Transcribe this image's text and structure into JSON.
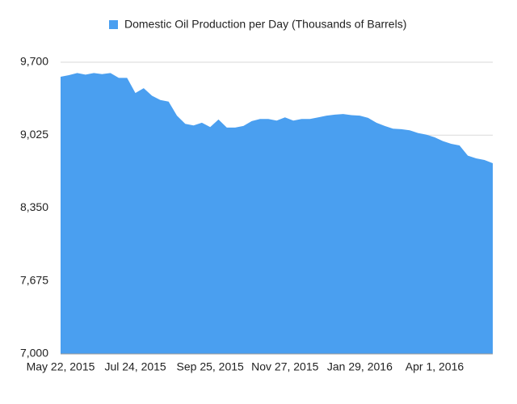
{
  "chart_data": {
    "type": "area",
    "categories": [
      "May 22, 2015",
      null,
      null,
      null,
      null,
      null,
      null,
      null,
      null,
      "Jul 24, 2015",
      null,
      null,
      null,
      null,
      null,
      null,
      null,
      null,
      "Sep 25, 2015",
      null,
      null,
      null,
      null,
      null,
      null,
      null,
      null,
      "Nov 27, 2015",
      null,
      null,
      null,
      null,
      null,
      null,
      null,
      null,
      "Jan 29, 2016",
      null,
      null,
      null,
      null,
      null,
      null,
      null,
      null,
      "Apr 1, 2016",
      null,
      null,
      null,
      null,
      null,
      null,
      null
    ],
    "series": [
      {
        "name": "Domestic Oil Production per Day (Thousands of Barrels)",
        "color": "#4a9ff0",
        "values": [
          9565,
          9580,
          9600,
          9585,
          9600,
          9590,
          9600,
          9555,
          9555,
          9415,
          9460,
          9390,
          9350,
          9335,
          9205,
          9130,
          9115,
          9140,
          9100,
          9170,
          9095,
          9095,
          9110,
          9155,
          9175,
          9175,
          9160,
          9190,
          9160,
          9175,
          9175,
          9190,
          9205,
          9215,
          9220,
          9210,
          9205,
          9185,
          9140,
          9110,
          9085,
          9080,
          9070,
          9045,
          9030,
          9005,
          8970,
          8945,
          8930,
          8835,
          8810,
          8795,
          8765
        ]
      }
    ],
    "ylim": [
      7000,
      9700
    ],
    "yticks": [
      {
        "value": 7000,
        "label": "7,000"
      },
      {
        "value": 7675,
        "label": "7,675"
      },
      {
        "value": 8350,
        "label": "8,350"
      },
      {
        "value": 9025,
        "label": "9,025"
      },
      {
        "value": 9700,
        "label": "9,700"
      }
    ],
    "grid": true,
    "legend": "top"
  }
}
